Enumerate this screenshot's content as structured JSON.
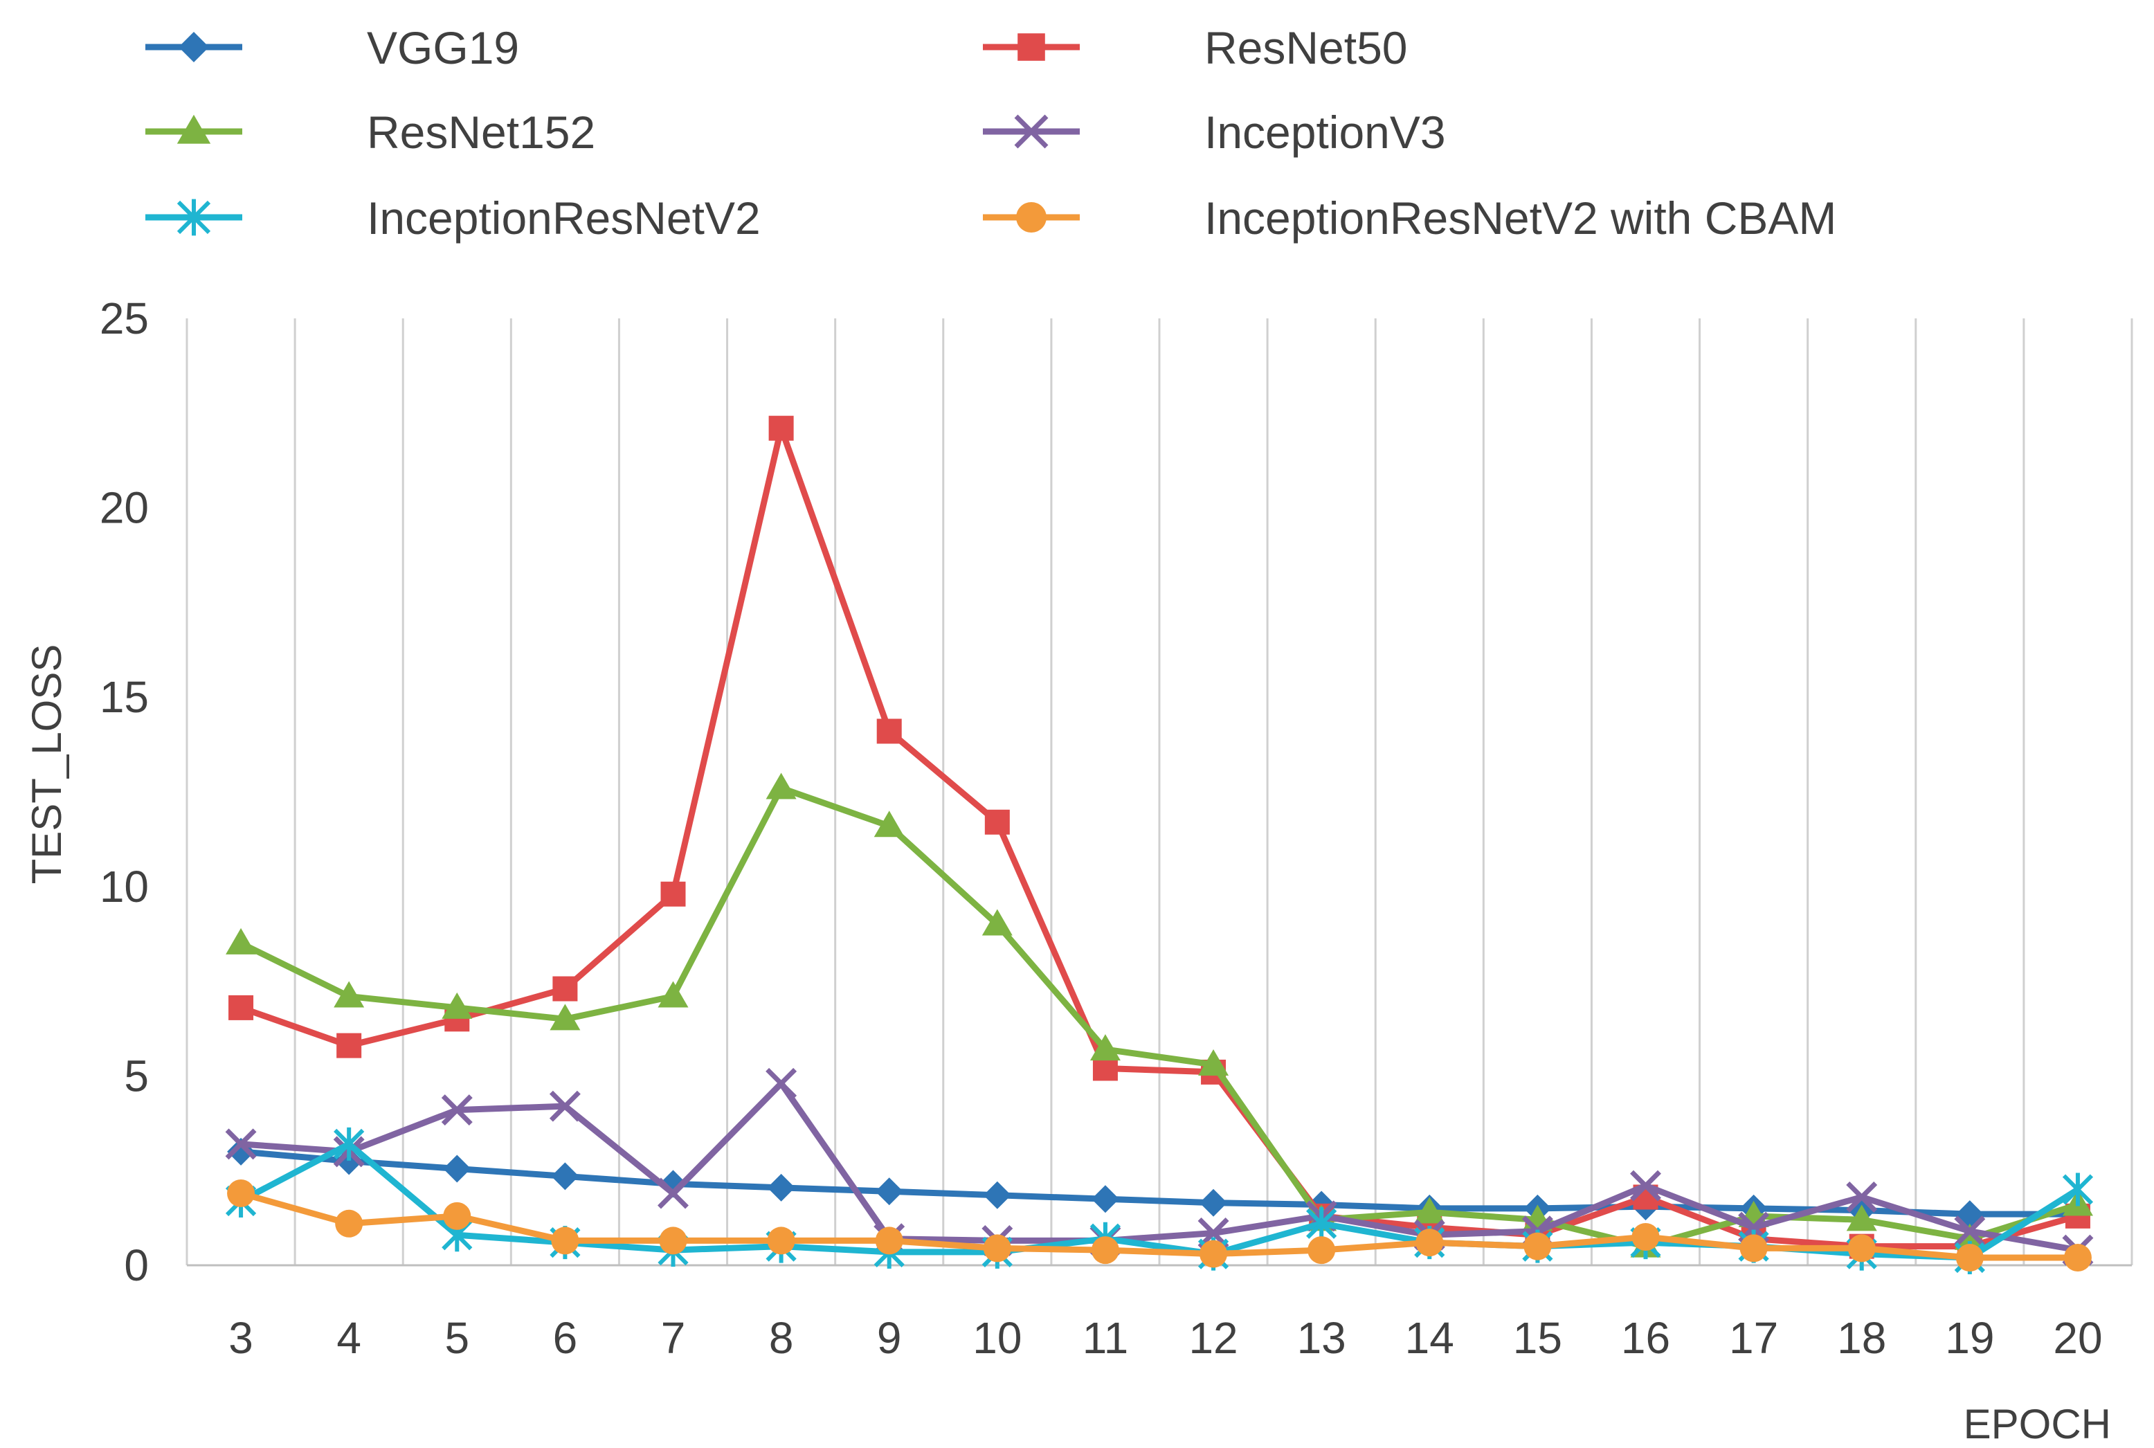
{
  "chart_data": {
    "type": "line",
    "title": "",
    "xlabel": "EPOCH",
    "ylabel": "TEST_LOSS",
    "ylim": [
      0,
      25
    ],
    "yticks": [
      0,
      5,
      10,
      15,
      20,
      25
    ],
    "grid": "vertical",
    "legend_position": "top",
    "categories": [
      "3",
      "4",
      "5",
      "6",
      "7",
      "8",
      "9",
      "10",
      "11",
      "12",
      "13",
      "14",
      "15",
      "16",
      "17",
      "18",
      "19",
      "20"
    ],
    "series": [
      {
        "name": "VGG19",
        "color": "#2e75b6",
        "marker": "diamond",
        "values": [
          3.0,
          2.75,
          2.55,
          2.35,
          2.15,
          2.05,
          1.95,
          1.85,
          1.75,
          1.65,
          1.6,
          1.5,
          1.5,
          1.55,
          1.5,
          1.45,
          1.35,
          1.35
        ]
      },
      {
        "name": "ResNet50",
        "color": "#e04b4b",
        "marker": "square",
        "values": [
          6.8,
          5.8,
          6.5,
          7.3,
          9.8,
          22.1,
          14.1,
          11.7,
          5.2,
          5.1,
          1.3,
          1.0,
          0.8,
          1.8,
          0.7,
          0.5,
          0.5,
          1.3
        ]
      },
      {
        "name": "ResNet152",
        "color": "#7db342",
        "marker": "triangle",
        "values": [
          8.5,
          7.1,
          6.8,
          6.5,
          7.1,
          12.6,
          11.6,
          9.0,
          5.7,
          5.3,
          1.2,
          1.4,
          1.2,
          0.5,
          1.3,
          1.2,
          0.7,
          1.6
        ]
      },
      {
        "name": "InceptionV3",
        "color": "#8064a2",
        "marker": "x",
        "values": [
          3.2,
          3.0,
          4.1,
          4.2,
          1.9,
          4.8,
          0.7,
          0.65,
          0.65,
          0.85,
          1.3,
          0.8,
          0.9,
          2.1,
          1.0,
          1.8,
          0.9,
          0.4
        ]
      },
      {
        "name": "InceptionResNetV2",
        "color": "#1fb5d1",
        "marker": "asterisk",
        "values": [
          1.7,
          3.2,
          0.8,
          0.6,
          0.4,
          0.5,
          0.35,
          0.35,
          0.7,
          0.3,
          1.1,
          0.6,
          0.5,
          0.6,
          0.5,
          0.3,
          0.2,
          2.0
        ]
      },
      {
        "name": "InceptionResNetV2 with CBAM",
        "color": "#f39a3a",
        "marker": "circle",
        "values": [
          1.9,
          1.1,
          1.3,
          0.65,
          0.65,
          0.65,
          0.65,
          0.45,
          0.4,
          0.3,
          0.4,
          0.6,
          0.5,
          0.75,
          0.45,
          0.45,
          0.2,
          0.2
        ]
      }
    ]
  }
}
